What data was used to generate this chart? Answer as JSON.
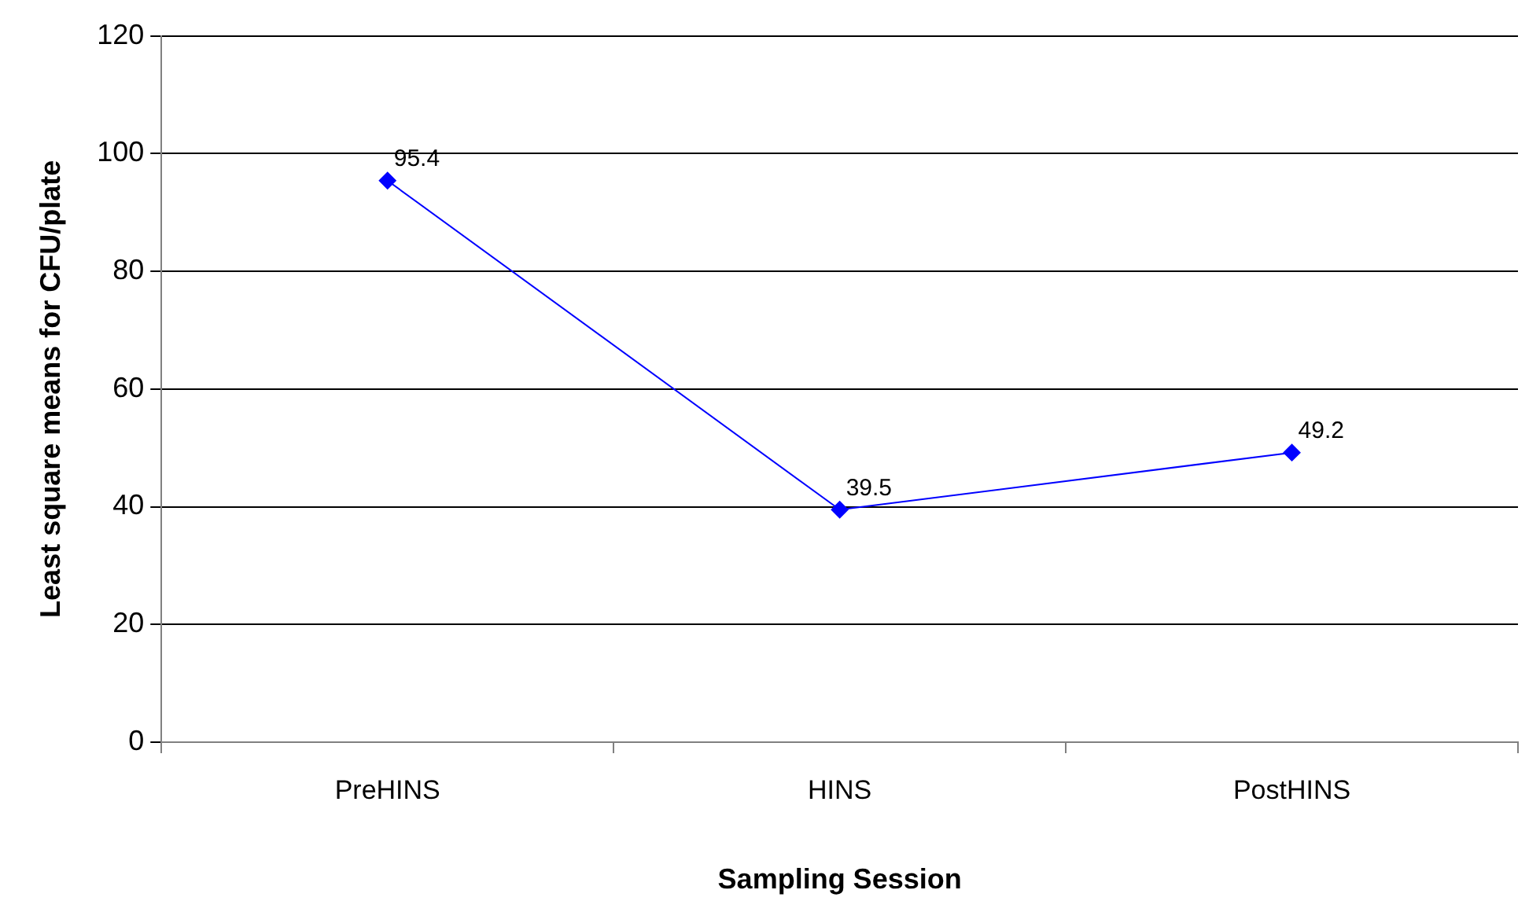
{
  "chart_data": {
    "type": "line",
    "xlabel": "Sampling Session",
    "ylabel": "Least square means for CFU/plate",
    "categories": [
      "PreHINS",
      "HINS",
      "PostHINS"
    ],
    "series": [
      {
        "color": "#0000ff",
        "values": [
          95.4,
          39.5,
          49.2
        ]
      }
    ],
    "ylim": [
      0,
      120
    ],
    "yticks": [
      0,
      20,
      40,
      60,
      80,
      100,
      120
    ],
    "grid": "y",
    "legend": false,
    "marker": "diamond",
    "line_style": "solid",
    "data_labels": true
  }
}
